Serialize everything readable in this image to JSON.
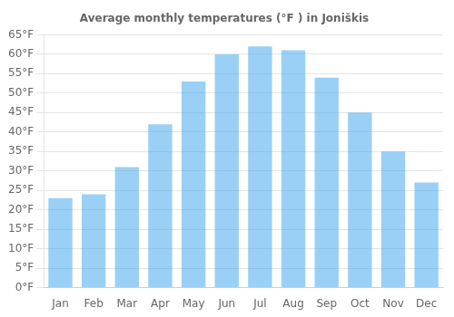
{
  "chart_data": {
    "type": "bar",
    "title": "Average monthly temperatures (°F ) in Joniškis",
    "categories": [
      "Jan",
      "Feb",
      "Mar",
      "Apr",
      "May",
      "Jun",
      "Jul",
      "Aug",
      "Sep",
      "Oct",
      "Nov",
      "Dec"
    ],
    "values": [
      23,
      24,
      31,
      42,
      53,
      60,
      62,
      61,
      54,
      45,
      35,
      27
    ],
    "ylim": [
      0,
      65
    ],
    "yticks": [
      {
        "value": 0,
        "label": "0°F"
      },
      {
        "value": 5,
        "label": "5°F"
      },
      {
        "value": 10,
        "label": "10°F"
      },
      {
        "value": 15,
        "label": "15°F"
      },
      {
        "value": 20,
        "label": "20°F"
      },
      {
        "value": 25,
        "label": "25°F"
      },
      {
        "value": 30,
        "label": "30°F"
      },
      {
        "value": 35,
        "label": "35°F"
      },
      {
        "value": 40,
        "label": "40°F"
      },
      {
        "value": 45,
        "label": "45°F"
      },
      {
        "value": 50,
        "label": "50°F"
      },
      {
        "value": 55,
        "label": "55°F"
      },
      {
        "value": 60,
        "label": "60°F"
      },
      {
        "value": 65,
        "label": "65°F"
      }
    ],
    "grid": true
  }
}
